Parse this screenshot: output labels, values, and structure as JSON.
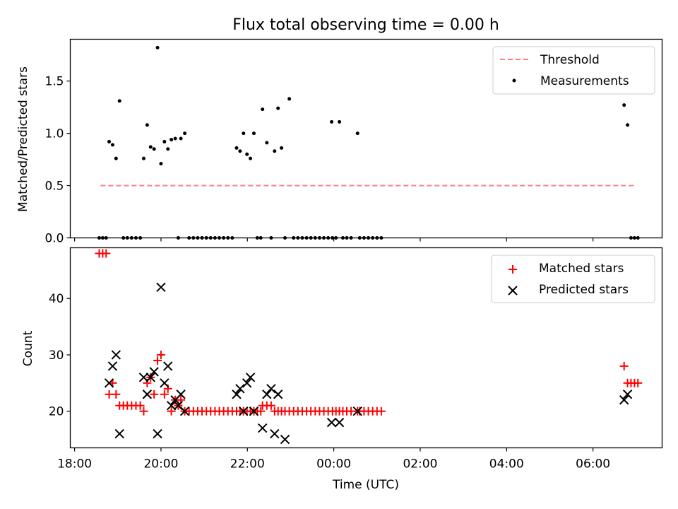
{
  "figure": {
    "title": "Flux total observing time = 0.00 h",
    "xlabel": "Time (UTC)",
    "colors": {
      "threshold": "#ff7f7f",
      "measurements": "#000000",
      "matched": "#ff0000",
      "predicted": "#000000"
    }
  },
  "chart_data": [
    {
      "type": "scatter",
      "title": "Flux total observing time = 0.00 h",
      "ylabel": "Matched/Predicted stars",
      "xlabel": "",
      "x_unit": "hours since 18:00 UTC",
      "xlim": [
        -0.1,
        13.6
      ],
      "ylim": [
        0,
        1.9
      ],
      "yticks": [
        0.0,
        0.5,
        1.0,
        1.5
      ],
      "ytick_labels": [
        "0.0",
        "0.5",
        "1.0",
        "1.5"
      ],
      "legend": [
        "Threshold",
        "Measurements"
      ],
      "legend_position": "top-right",
      "threshold": {
        "name": "Threshold",
        "x": [
          0.6,
          12.95
        ],
        "y": 0.5,
        "style": "dashed"
      },
      "series": [
        {
          "name": "Measurements",
          "marker": "dot",
          "points": [
            [
              0.57,
              0
            ],
            [
              0.65,
              0
            ],
            [
              0.73,
              0
            ],
            [
              0.8,
              0.92
            ],
            [
              0.88,
              0.89
            ],
            [
              0.96,
              0.76
            ],
            [
              1.04,
              1.31
            ],
            [
              1.13,
              0
            ],
            [
              1.22,
              0
            ],
            [
              1.32,
              0
            ],
            [
              1.42,
              0
            ],
            [
              1.52,
              0
            ],
            [
              1.6,
              0.76
            ],
            [
              1.68,
              1.08
            ],
            [
              1.76,
              0.87
            ],
            [
              1.84,
              0.85
            ],
            [
              1.92,
              1.82
            ],
            [
              2.0,
              0.71
            ],
            [
              2.08,
              0.92
            ],
            [
              2.16,
              0.85
            ],
            [
              2.24,
              0.94
            ],
            [
              2.33,
              0.95
            ],
            [
              2.4,
              0
            ],
            [
              2.46,
              0.95
            ],
            [
              2.55,
              1.0
            ],
            [
              2.65,
              0
            ],
            [
              2.75,
              0
            ],
            [
              2.85,
              0
            ],
            [
              2.95,
              0
            ],
            [
              3.05,
              0
            ],
            [
              3.15,
              0
            ],
            [
              3.25,
              0
            ],
            [
              3.35,
              0
            ],
            [
              3.45,
              0
            ],
            [
              3.55,
              0
            ],
            [
              3.65,
              0
            ],
            [
              3.75,
              0.86
            ],
            [
              3.83,
              0.83
            ],
            [
              3.91,
              1.0
            ],
            [
              3.99,
              0.8
            ],
            [
              4.07,
              0.76
            ],
            [
              4.15,
              1.0
            ],
            [
              4.23,
              0
            ],
            [
              4.31,
              0
            ],
            [
              4.35,
              1.23
            ],
            [
              4.45,
              0.91
            ],
            [
              4.55,
              0
            ],
            [
              4.63,
              0.83
            ],
            [
              4.71,
              1.24
            ],
            [
              4.79,
              0.86
            ],
            [
              4.87,
              0
            ],
            [
              4.97,
              1.33
            ],
            [
              5.07,
              0
            ],
            [
              5.17,
              0
            ],
            [
              5.27,
              0
            ],
            [
              5.37,
              0
            ],
            [
              5.47,
              0
            ],
            [
              5.57,
              0
            ],
            [
              5.67,
              0
            ],
            [
              5.77,
              0
            ],
            [
              5.87,
              0
            ],
            [
              5.97,
              0
            ],
            [
              5.95,
              1.11
            ],
            [
              6.05,
              0
            ],
            [
              6.13,
              1.11
            ],
            [
              6.21,
              0
            ],
            [
              6.3,
              0
            ],
            [
              6.4,
              0
            ],
            [
              6.55,
              1.0
            ],
            [
              6.6,
              0
            ],
            [
              6.7,
              0
            ],
            [
              6.8,
              0
            ],
            [
              6.9,
              0
            ],
            [
              7.0,
              0
            ],
            [
              7.1,
              0
            ],
            [
              12.72,
              1.27
            ],
            [
              12.8,
              1.08
            ],
            [
              12.88,
              0
            ],
            [
              12.96,
              0
            ],
            [
              13.04,
              0
            ]
          ]
        }
      ],
      "grid": false
    },
    {
      "type": "scatter",
      "title": "",
      "ylabel": "Count",
      "xlabel": "Time (UTC)",
      "x_unit": "hours since 18:00 UTC",
      "xlim": [
        -0.1,
        13.6
      ],
      "ylim": [
        13.5,
        49
      ],
      "yticks": [
        20,
        30,
        40
      ],
      "ytick_labels": [
        "20",
        "30",
        "40"
      ],
      "xticks": [
        0,
        2,
        4,
        6,
        8,
        10,
        12
      ],
      "xtick_labels": [
        "18:00",
        "20:00",
        "22:00",
        "00:00",
        "02:00",
        "04:00",
        "06:00"
      ],
      "legend": [
        "Matched stars",
        "Predicted stars"
      ],
      "legend_position": "top-right",
      "series": [
        {
          "name": "Matched stars",
          "marker": "plus",
          "points": [
            [
              0.57,
              48
            ],
            [
              0.65,
              48
            ],
            [
              0.73,
              48
            ],
            [
              0.8,
              23
            ],
            [
              0.88,
              25
            ],
            [
              0.96,
              23
            ],
            [
              1.04,
              21
            ],
            [
              1.13,
              21
            ],
            [
              1.22,
              21
            ],
            [
              1.32,
              21
            ],
            [
              1.42,
              21
            ],
            [
              1.52,
              21
            ],
            [
              1.6,
              20
            ],
            [
              1.68,
              25
            ],
            [
              1.76,
              26
            ],
            [
              1.84,
              23
            ],
            [
              1.92,
              29
            ],
            [
              2.0,
              30
            ],
            [
              2.08,
              23
            ],
            [
              2.16,
              24
            ],
            [
              2.24,
              20
            ],
            [
              2.33,
              22
            ],
            [
              2.4,
              21
            ],
            [
              2.46,
              22
            ],
            [
              2.55,
              20
            ],
            [
              2.65,
              20
            ],
            [
              2.75,
              20
            ],
            [
              2.85,
              20
            ],
            [
              2.95,
              20
            ],
            [
              3.05,
              20
            ],
            [
              3.15,
              20
            ],
            [
              3.25,
              20
            ],
            [
              3.35,
              20
            ],
            [
              3.45,
              20
            ],
            [
              3.55,
              20
            ],
            [
              3.65,
              20
            ],
            [
              3.75,
              20
            ],
            [
              3.83,
              20
            ],
            [
              3.91,
              20
            ],
            [
              3.99,
              20
            ],
            [
              4.07,
              20
            ],
            [
              4.15,
              20
            ],
            [
              4.23,
              20
            ],
            [
              4.31,
              20
            ],
            [
              4.35,
              21
            ],
            [
              4.45,
              21
            ],
            [
              4.55,
              21
            ],
            [
              4.63,
              20
            ],
            [
              4.71,
              20
            ],
            [
              4.79,
              20
            ],
            [
              4.87,
              20
            ],
            [
              4.97,
              20
            ],
            [
              5.07,
              20
            ],
            [
              5.17,
              20
            ],
            [
              5.27,
              20
            ],
            [
              5.37,
              20
            ],
            [
              5.47,
              20
            ],
            [
              5.57,
              20
            ],
            [
              5.67,
              20
            ],
            [
              5.77,
              20
            ],
            [
              5.87,
              20
            ],
            [
              5.97,
              20
            ],
            [
              6.05,
              20
            ],
            [
              6.13,
              20
            ],
            [
              6.21,
              20
            ],
            [
              6.3,
              20
            ],
            [
              6.4,
              20
            ],
            [
              6.55,
              20
            ],
            [
              6.6,
              20
            ],
            [
              6.7,
              20
            ],
            [
              6.8,
              20
            ],
            [
              6.9,
              20
            ],
            [
              7.0,
              20
            ],
            [
              7.1,
              20
            ],
            [
              12.72,
              28
            ],
            [
              12.8,
              25
            ],
            [
              12.88,
              25
            ],
            [
              12.96,
              25
            ],
            [
              13.04,
              25
            ]
          ]
        },
        {
          "name": "Predicted stars",
          "marker": "x",
          "points": [
            [
              0.8,
              25
            ],
            [
              0.88,
              28
            ],
            [
              0.96,
              30
            ],
            [
              1.04,
              16
            ],
            [
              1.6,
              26
            ],
            [
              1.68,
              23
            ],
            [
              1.76,
              26
            ],
            [
              1.84,
              27
            ],
            [
              1.92,
              16
            ],
            [
              2.0,
              42
            ],
            [
              2.08,
              25
            ],
            [
              2.16,
              28
            ],
            [
              2.24,
              21
            ],
            [
              2.33,
              22
            ],
            [
              2.4,
              21
            ],
            [
              2.46,
              23
            ],
            [
              2.55,
              20
            ],
            [
              3.75,
              23
            ],
            [
              3.83,
              24
            ],
            [
              3.91,
              20
            ],
            [
              3.99,
              25
            ],
            [
              4.07,
              26
            ],
            [
              4.15,
              20
            ],
            [
              4.35,
              17
            ],
            [
              4.45,
              23
            ],
            [
              4.55,
              24
            ],
            [
              4.63,
              16
            ],
            [
              4.71,
              23
            ],
            [
              4.87,
              15
            ],
            [
              5.95,
              18
            ],
            [
              6.13,
              18
            ],
            [
              6.55,
              20
            ],
            [
              12.72,
              22
            ],
            [
              12.8,
              23
            ]
          ]
        }
      ],
      "grid": false
    }
  ]
}
